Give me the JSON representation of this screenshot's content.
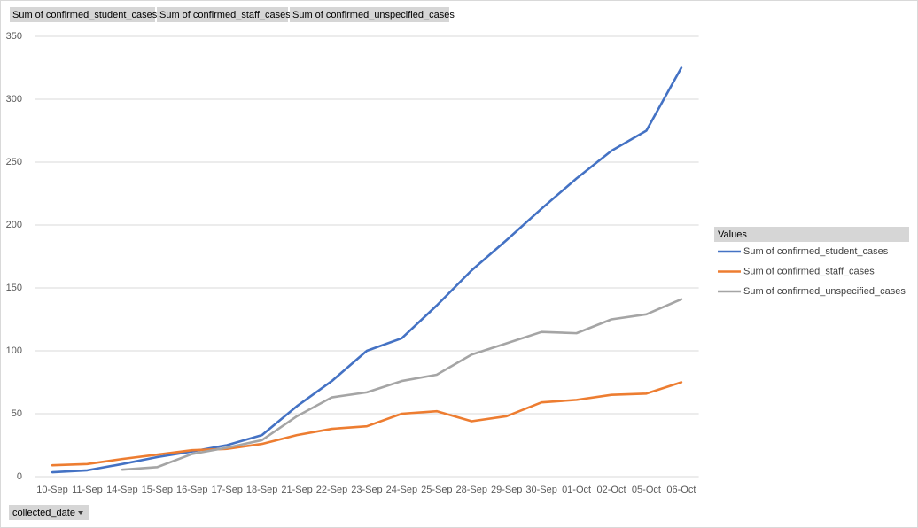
{
  "chart_data": {
    "type": "line",
    "categories": [
      "10-Sep",
      "11-Sep",
      "14-Sep",
      "15-Sep",
      "16-Sep",
      "17-Sep",
      "18-Sep",
      "21-Sep",
      "22-Sep",
      "23-Sep",
      "24-Sep",
      "25-Sep",
      "28-Sep",
      "29-Sep",
      "30-Sep",
      "01-Oct",
      "02-Oct",
      "05-Oct",
      "06-Oct"
    ],
    "series": [
      {
        "name": "Sum of confirmed_student_cases",
        "color": "#4472c4",
        "values": [
          3.5,
          5,
          10,
          15.5,
          20,
          25,
          33,
          56,
          76,
          100,
          110,
          136,
          164,
          188,
          213,
          237,
          259,
          275,
          325
        ]
      },
      {
        "name": "Sum of confirmed_staff_cases",
        "color": "#ed7d31",
        "values": [
          9,
          10,
          14,
          17.5,
          21,
          22,
          26,
          33,
          38,
          40,
          50,
          52,
          44,
          48,
          59,
          61,
          65,
          66,
          75
        ]
      },
      {
        "name": "Sum of confirmed_unspecified_cases",
        "color": "#a5a5a5",
        "values": [
          null,
          null,
          5.5,
          7.5,
          18,
          23,
          29,
          48,
          63,
          67,
          76,
          81,
          97,
          106,
          115,
          114,
          125,
          129,
          141
        ]
      }
    ],
    "ylim": [
      0,
      350
    ],
    "yticks": [
      0,
      50,
      100,
      150,
      200,
      250,
      300,
      350
    ],
    "grid": true,
    "legend_position": "right",
    "legend_title": "Values",
    "x_field_button": "collected_date"
  }
}
